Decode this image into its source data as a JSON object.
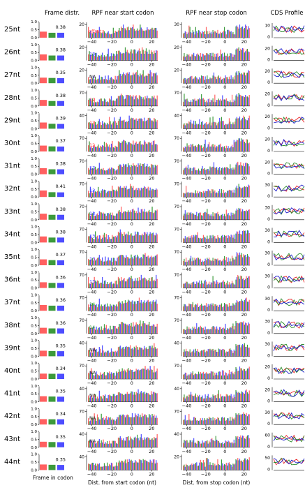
{
  "column_titles": {
    "frame": "Frame distr.",
    "start": "RPF near start codon",
    "stop": "RPF near stop codon",
    "cds": "CDS Profile"
  },
  "x_labels": {
    "frame": "Frame in codon",
    "start": "Dist. from start codon (nt)",
    "stop": "Dist. from stop codon (nt)"
  },
  "frame_yticks": [
    "0.0",
    "0.5",
    "1.0"
  ],
  "start_xticks": [
    "-40",
    "-20",
    "0",
    "20"
  ],
  "stop_xticks": [
    "-40",
    "-20",
    "0",
    "20"
  ],
  "offset_label": "offset:",
  "colors": {
    "frame0": "#ff6060",
    "frame1": "#3c9a3c",
    "frame2": "#4d4dff",
    "line_red": "#e8272a",
    "line_green": "#2a8a2a",
    "line_blue": "#2020cc"
  },
  "chart_data": {
    "type": "bar",
    "note_frames": [
      "0",
      "1",
      "2"
    ],
    "rows": [
      {
        "label": "25nt",
        "frame_value": "0.38",
        "frame_values": [
          0.38,
          0.31,
          0.31
        ],
        "offset": "",
        "offset_color": "#ff4040",
        "start_ymax": 20,
        "start_ytick": "20",
        "stop_ymax": 30,
        "stop_ytick": "30",
        "cds_ymax": 10,
        "cds_ytick": "10"
      },
      {
        "label": "26nt",
        "frame_value": "0.38",
        "frame_values": [
          0.38,
          0.31,
          0.31
        ],
        "offset": "13",
        "offset_color": "#3a3aff",
        "start_ymax": 20,
        "start_ytick": "20",
        "stop_ymax": 20,
        "stop_ytick": "20",
        "cds_ymax": 20,
        "cds_ytick": "20"
      },
      {
        "label": "27nt",
        "frame_value": "0.35",
        "frame_values": [
          0.35,
          0.33,
          0.32
        ],
        "offset": "NA",
        "offset_color": "#222222",
        "start_ymax": 20,
        "start_ytick": "20",
        "stop_ymax": 20,
        "stop_ytick": "20",
        "cds_ymax": 20,
        "cds_ytick": "20"
      },
      {
        "label": "28nt",
        "frame_value": "0.38",
        "frame_values": [
          0.38,
          0.31,
          0.31
        ],
        "offset": "12",
        "offset_color": "#ff4040",
        "start_ymax": 70,
        "start_ytick": "70",
        "stop_ymax": 70,
        "stop_ytick": "70",
        "cds_ymax": 20,
        "cds_ytick": "20"
      },
      {
        "label": "29nt",
        "frame_value": "0.39",
        "frame_values": [
          0.39,
          0.31,
          0.3
        ],
        "offset": "12",
        "offset_color": "#ff4040",
        "start_ymax": 40,
        "start_ytick": "40",
        "stop_ymax": 40,
        "stop_ytick": "40",
        "cds_ymax": 20,
        "cds_ytick": "20"
      },
      {
        "label": "30nt",
        "frame_value": "0.37",
        "frame_values": [
          0.37,
          0.32,
          0.31
        ],
        "offset": "12",
        "offset_color": "#ff4040",
        "start_ymax": 70,
        "start_ytick": "70",
        "stop_ymax": 70,
        "stop_ytick": "70",
        "cds_ymax": 20,
        "cds_ytick": "20"
      },
      {
        "label": "31nt",
        "frame_value": "0.38",
        "frame_values": [
          0.38,
          0.31,
          0.31
        ],
        "offset": "13",
        "offset_color": "#3a3aff",
        "start_ymax": 70,
        "start_ytick": "70",
        "stop_ymax": 70,
        "stop_ytick": "70",
        "cds_ymax": 20,
        "cds_ytick": "20"
      },
      {
        "label": "32nt",
        "frame_value": "0.41",
        "frame_values": [
          0.41,
          0.3,
          0.29
        ],
        "offset": "13",
        "offset_color": "#3a3aff",
        "start_ymax": 70,
        "start_ytick": "70",
        "stop_ymax": 70,
        "stop_ytick": "70",
        "cds_ymax": 30,
        "cds_ytick": "30"
      },
      {
        "label": "33nt",
        "frame_value": "0.38",
        "frame_values": [
          0.38,
          0.31,
          0.31
        ],
        "offset": "13",
        "offset_color": "#3a3aff",
        "start_ymax": 70,
        "start_ytick": "70",
        "stop_ymax": 70,
        "stop_ytick": "70",
        "cds_ymax": 30,
        "cds_ytick": "30"
      },
      {
        "label": "34nt",
        "frame_value": "0.38",
        "frame_values": [
          0.38,
          0.31,
          0.31
        ],
        "offset": "13",
        "offset_color": "#3a3aff",
        "start_ymax": 70,
        "start_ytick": "70",
        "stop_ymax": 70,
        "stop_ytick": "70",
        "cds_ymax": 30,
        "cds_ytick": "30"
      },
      {
        "label": "35nt",
        "frame_value": "0.37",
        "frame_values": [
          0.37,
          0.32,
          0.31
        ],
        "offset": "13",
        "offset_color": "#3a3aff",
        "start_ymax": 70,
        "start_ytick": "70",
        "stop_ymax": 70,
        "stop_ytick": "70",
        "cds_ymax": 30,
        "cds_ytick": "30"
      },
      {
        "label": "36nt",
        "frame_value": "0.36",
        "frame_values": [
          0.36,
          0.32,
          0.32
        ],
        "offset": "13",
        "offset_color": "#3a3aff",
        "start_ymax": 70,
        "start_ytick": "70",
        "stop_ymax": 70,
        "stop_ytick": "70",
        "cds_ymax": 30,
        "cds_ytick": "30"
      },
      {
        "label": "37nt",
        "frame_value": "0.36",
        "frame_values": [
          0.36,
          0.32,
          0.32
        ],
        "offset": "14",
        "offset_color": "#2a9a2a",
        "start_ymax": 70,
        "start_ytick": "70",
        "stop_ymax": 70,
        "stop_ytick": "70",
        "cds_ymax": 30,
        "cds_ytick": "30"
      },
      {
        "label": "38nt",
        "frame_value": "0.36",
        "frame_values": [
          0.36,
          0.32,
          0.32
        ],
        "offset": "14",
        "offset_color": "#2a9a2a",
        "start_ymax": 70,
        "start_ytick": "70",
        "stop_ymax": 70,
        "stop_ytick": "70",
        "cds_ymax": 30,
        "cds_ytick": "30"
      },
      {
        "label": "39nt",
        "frame_value": "0.35",
        "frame_values": [
          0.35,
          0.33,
          0.32
        ],
        "offset": "NA",
        "offset_color": "#222222",
        "start_ymax": 40,
        "start_ytick": "40",
        "stop_ymax": 40,
        "stop_ytick": "40",
        "cds_ymax": 30,
        "cds_ytick": "30"
      },
      {
        "label": "40nt",
        "frame_value": "0.34",
        "frame_values": [
          0.34,
          0.33,
          0.33
        ],
        "offset": "NA",
        "offset_color": "#222222",
        "start_ymax": 70,
        "start_ytick": "70",
        "stop_ymax": 70,
        "stop_ytick": "70",
        "cds_ymax": 20,
        "cds_ytick": "20"
      },
      {
        "label": "41nt",
        "frame_value": "0.35",
        "frame_values": [
          0.35,
          0.33,
          0.32
        ],
        "offset": "NA",
        "offset_color": "#222222",
        "start_ymax": 40,
        "start_ytick": "40",
        "stop_ymax": 40,
        "stop_ytick": "40",
        "cds_ymax": 20,
        "cds_ytick": "20"
      },
      {
        "label": "42nt",
        "frame_value": "0.34",
        "frame_values": [
          0.34,
          0.33,
          0.33
        ],
        "offset": "NA",
        "offset_color": "#222222",
        "start_ymax": 70,
        "start_ytick": "70",
        "stop_ymax": 70,
        "stop_ytick": "70",
        "cds_ymax": 30,
        "cds_ytick": "30"
      },
      {
        "label": "43nt",
        "frame_value": "0.35",
        "frame_values": [
          0.35,
          0.33,
          0.32
        ],
        "offset": "NA",
        "offset_color": "#222222",
        "start_ymax": 40,
        "start_ytick": "40",
        "stop_ymax": 40,
        "stop_ytick": "40",
        "cds_ymax": 60,
        "cds_ytick": "60"
      },
      {
        "label": "44nt",
        "frame_value": "0.35",
        "frame_values": [
          0.35,
          0.33,
          0.32
        ],
        "offset": "",
        "offset_color": "#222222",
        "start_ymax": 40,
        "start_ytick": "40",
        "stop_ymax": 20,
        "stop_ytick": "20",
        "cds_ymax": 50,
        "cds_ytick": "50"
      }
    ]
  }
}
